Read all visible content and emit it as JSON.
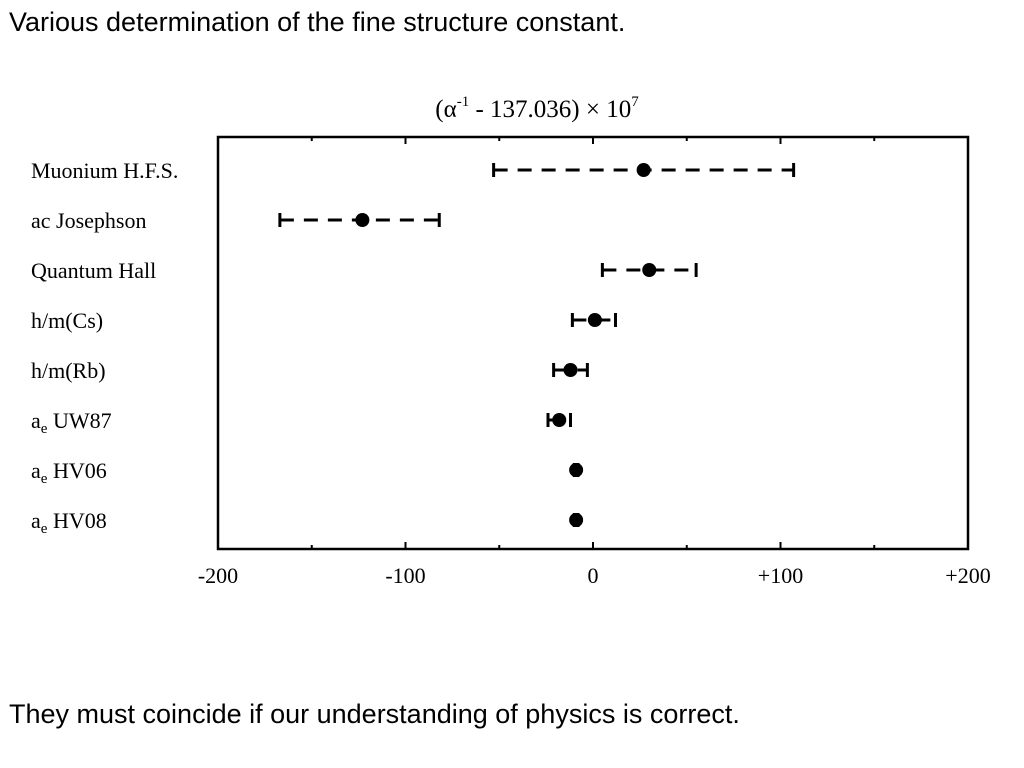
{
  "slide": {
    "heading": "Various determination of the fine structure constant.",
    "footer": "They must coincide if our understanding of physics is correct."
  },
  "chart_data": {
    "type": "scatter",
    "title": {
      "base": "(α",
      "exponent": "-1",
      "middle": " - 137.036) × 10",
      "power": "7"
    },
    "xlim": [
      -200,
      200
    ],
    "x_ticks": [
      -200,
      -100,
      0,
      100,
      200
    ],
    "x_tick_labels": [
      "-200",
      "-100",
      "0",
      "+100",
      "+200"
    ],
    "grid": false,
    "series": [
      {
        "label": "Muonium H.F.S.",
        "value": 27,
        "err_low": -53,
        "err_high": 107
      },
      {
        "label": "ac Josephson",
        "value": -123,
        "err_low": -167,
        "err_high": -82
      },
      {
        "label": "Quantum Hall",
        "value": 30,
        "err_low": 5,
        "err_high": 55
      },
      {
        "label": "h/m(Cs)",
        "value": 1,
        "err_low": -11,
        "err_high": 12
      },
      {
        "label": "h/m(Rb)",
        "value": -12,
        "err_low": -21,
        "err_high": -3
      },
      {
        "label": "UW87",
        "label_prefix": "a",
        "label_sub": "e",
        "value": -18,
        "err_low": -24,
        "err_high": -12
      },
      {
        "label": "HV06",
        "label_prefix": "a",
        "label_sub": "e",
        "value": -9,
        "err_low": -10,
        "err_high": -8
      },
      {
        "label": "HV08",
        "label_prefix": "a",
        "label_sub": "e",
        "value": -9,
        "err_low": -10,
        "err_high": -8
      }
    ],
    "colors": {
      "marker": "#000000",
      "axis": "#000000"
    }
  }
}
